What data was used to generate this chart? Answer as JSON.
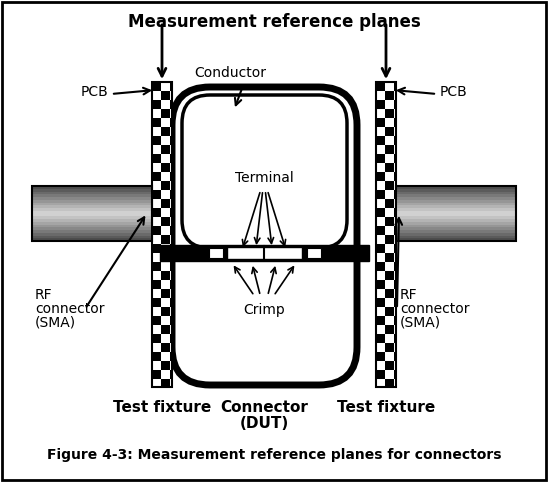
{
  "title": "Measurement reference planes",
  "figure_caption": "Figure 4-3: Measurement reference planes for connectors",
  "labels": {
    "pcb_left": "PCB",
    "pcb_right": "PCB",
    "conductor": "Conductor",
    "terminal": "Terminal",
    "crimp": "Crimp",
    "rf_left_line1": "RF",
    "rf_left_line2": "connector",
    "rf_left_line3": "(SMA)",
    "rf_right_line1": "RF",
    "rf_right_line2": "connector",
    "rf_right_line3": "(SMA)",
    "test_fixture_left": "Test fixture",
    "test_fixture_right": "Test fixture",
    "connector_dut_line1": "Connector",
    "connector_dut_line2": "(DUT)"
  },
  "colors": {
    "background": "#ffffff",
    "black": "#000000",
    "white": "#ffffff",
    "checker_dark": "#000000",
    "checker_light": "#ffffff",
    "rf_dark": "#555555",
    "rf_mid": "#aaaaaa",
    "rf_light": "#dddddd"
  },
  "figsize": [
    5.48,
    4.82
  ],
  "dpi": 100
}
